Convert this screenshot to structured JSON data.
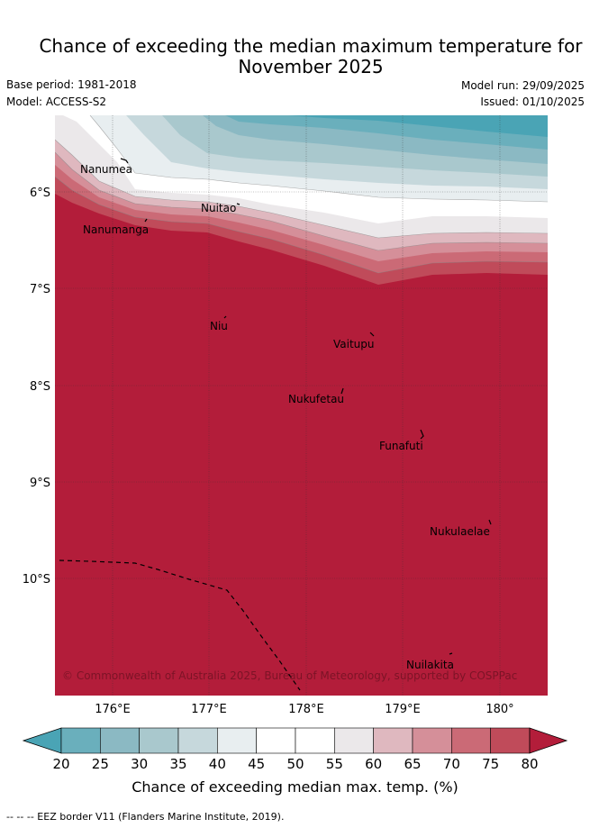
{
  "title_line1": "Chance of exceeding the median maximum temperature for",
  "title_line2": "November 2025",
  "base_period": "Base period: 1981-2018",
  "model": "Model: ACCESS-S2",
  "model_run": "Model run: 29/09/2025",
  "issued": "Issued: 01/10/2025",
  "lon_labels": [
    "176°E",
    "177°E",
    "178°E",
    "179°E",
    "180°"
  ],
  "lat_labels": [
    "6°S",
    "7°S",
    "8°S",
    "9°S",
    "10°S"
  ],
  "islands": [
    {
      "name": "Nanumea"
    },
    {
      "name": "Nuitao"
    },
    {
      "name": "Nanumanga"
    },
    {
      "name": "Niu"
    },
    {
      "name": "Vaitupu"
    },
    {
      "name": "Nukufetau"
    },
    {
      "name": "Funafuti"
    },
    {
      "name": "Nukulaelae"
    },
    {
      "name": "Nuilakita"
    }
  ],
  "copyright": "© Commonwealth of Australia 2025, Bureau of Meteorology, supported by COSPPac",
  "colorbar": {
    "ticks": [
      "20",
      "25",
      "30",
      "35",
      "40",
      "45",
      "50",
      "55",
      "60",
      "65",
      "70",
      "75",
      "80"
    ],
    "colors": [
      "#4aa4b5",
      "#6aafbc",
      "#8bb9c3",
      "#a9c8cd",
      "#c6d8dc",
      "#e8eef0",
      "#ffffff",
      "#ffffff",
      "#ebe8ea",
      "#dfb8bf",
      "#d58f99",
      "#cb6a76",
      "#c04b5a",
      "#b31d3a"
    ],
    "label": "Chance of exceeding median max. temp. (%)"
  },
  "footnote": "--  --  -- EEZ border V11 (Flanders Marine Institute, 2019)."
}
